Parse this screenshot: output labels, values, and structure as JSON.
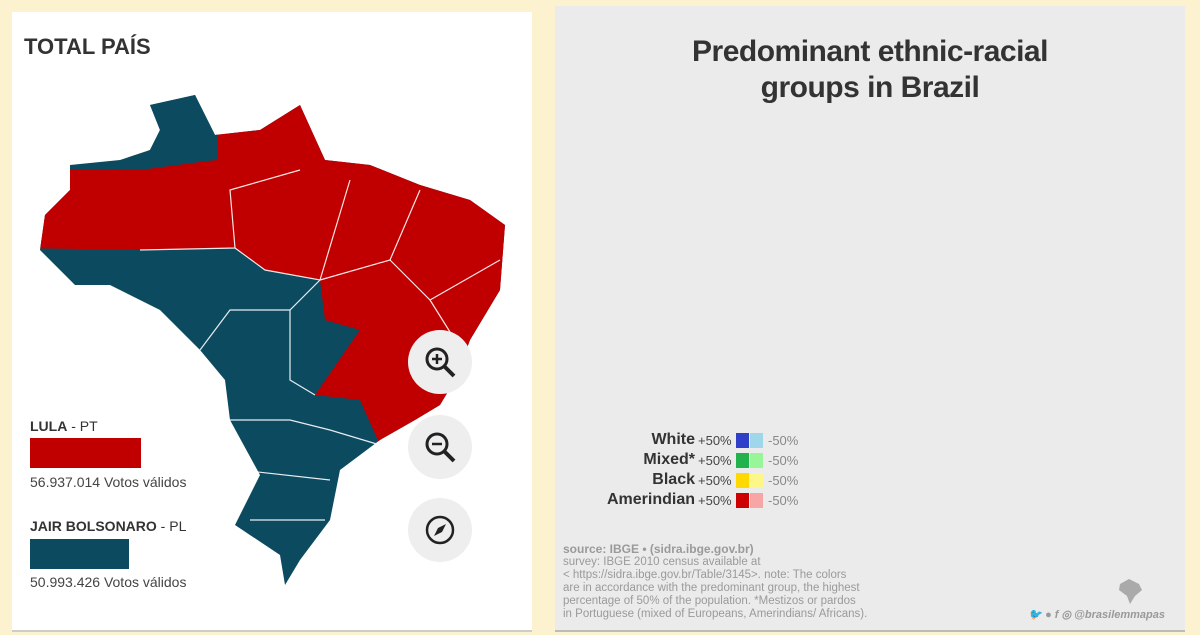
{
  "left": {
    "title": "TOTAL PAÍS",
    "candidates": [
      {
        "name": "LULA",
        "party": " - PT",
        "votes": "56.937.014 Votos válidos",
        "color": "#c00000",
        "share": 0.5276
      },
      {
        "name": "JAIR BOLSONARO",
        "party": " - PL",
        "votes": "50.993.426 Votos válidos",
        "color": "#0c4a60",
        "share": 0.4724
      }
    ],
    "controls": [
      "zoom-in-icon",
      "zoom-out-icon",
      "compass-icon"
    ]
  },
  "right": {
    "title_line1": "Predominant ethnic-racial",
    "title_line2": "groups in Brazil",
    "legend": [
      {
        "name": "White",
        "plus": "+50%",
        "minus": "-50%",
        "dark": "#2f3fc8",
        "light": "#9fd7ea"
      },
      {
        "name": "Mixed*",
        "plus": "+50%",
        "minus": "-50%",
        "dark": "#22b24c",
        "light": "#98f598"
      },
      {
        "name": "Black",
        "plus": "+50%",
        "minus": "-50%",
        "dark": "#ffd800",
        "light": "#fdf78a"
      },
      {
        "name": "Amerindian",
        "plus": "+50%",
        "minus": "-50%",
        "dark": "#cc0000",
        "light": "#f7a5a5"
      }
    ],
    "source": "source: IBGE • (sidra.ibge.gov.br)",
    "survey_lines": [
      "survey: IBGE 2010 census available at",
      "< https://sidra.ibge.gov.br/Table/3145>. note: The colors",
      "are in accordance with the predominant group, the highest",
      "percentage of 50% of the population. *Mestizos or pardos",
      "in Portuguese (mixed of Europeans, Amerindians/ Africans)."
    ],
    "social": "@brasilemmapas"
  }
}
